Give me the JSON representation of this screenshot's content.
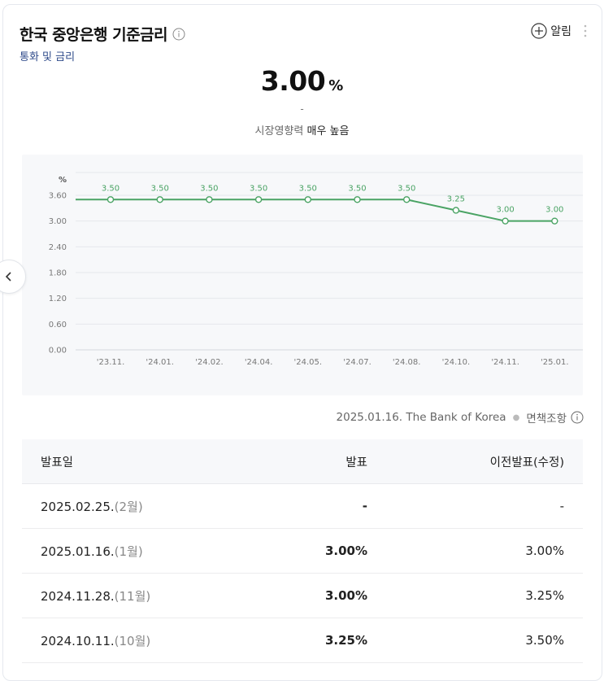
{
  "header": {
    "title": "한국 중앙은행 기준금리",
    "subtitle": "통화 및 금리",
    "alarm_label": "알림"
  },
  "summary": {
    "value": "3.00",
    "unit": "%",
    "change": "-",
    "impact_label": "시장영향력",
    "impact_value": "매우 높음"
  },
  "chart_data": {
    "type": "line",
    "ylabel": "%",
    "categories": [
      "'23.11.",
      "'24.01.",
      "'24.02.",
      "'24.04.",
      "'24.05.",
      "'24.07.",
      "'24.08.",
      "'24.10.",
      "'24.11.",
      "'25.01."
    ],
    "series": [
      {
        "values": [
          3.5,
          3.5,
          3.5,
          3.5,
          3.5,
          3.5,
          3.5,
          3.25,
          3.0,
          3.0
        ]
      }
    ],
    "data_labels": [
      "3.50",
      "3.50",
      "3.50",
      "3.50",
      "3.50",
      "3.50",
      "3.50",
      "3.25",
      "3.00",
      "3.00"
    ],
    "yticks": [
      "3.60",
      "3.00",
      "2.40",
      "1.80",
      "1.20",
      "0.60",
      "0.00"
    ],
    "grid": true,
    "color": "#4aa364"
  },
  "source": {
    "text": "2025.01.16. The Bank of Korea",
    "disclaimer": "면책조항"
  },
  "table": {
    "headers": [
      "발표일",
      "발표",
      "이전발표(수정)"
    ],
    "rows": [
      {
        "date": "2025.02.25.",
        "month": "(2월)",
        "actual": "-",
        "previous": "-"
      },
      {
        "date": "2025.01.16.",
        "month": "(1월)",
        "actual": "3.00%",
        "previous": "3.00%"
      },
      {
        "date": "2024.11.28.",
        "month": "(11월)",
        "actual": "3.00%",
        "previous": "3.25%"
      },
      {
        "date": "2024.10.11.",
        "month": "(10월)",
        "actual": "3.25%",
        "previous": "3.50%"
      }
    ]
  }
}
